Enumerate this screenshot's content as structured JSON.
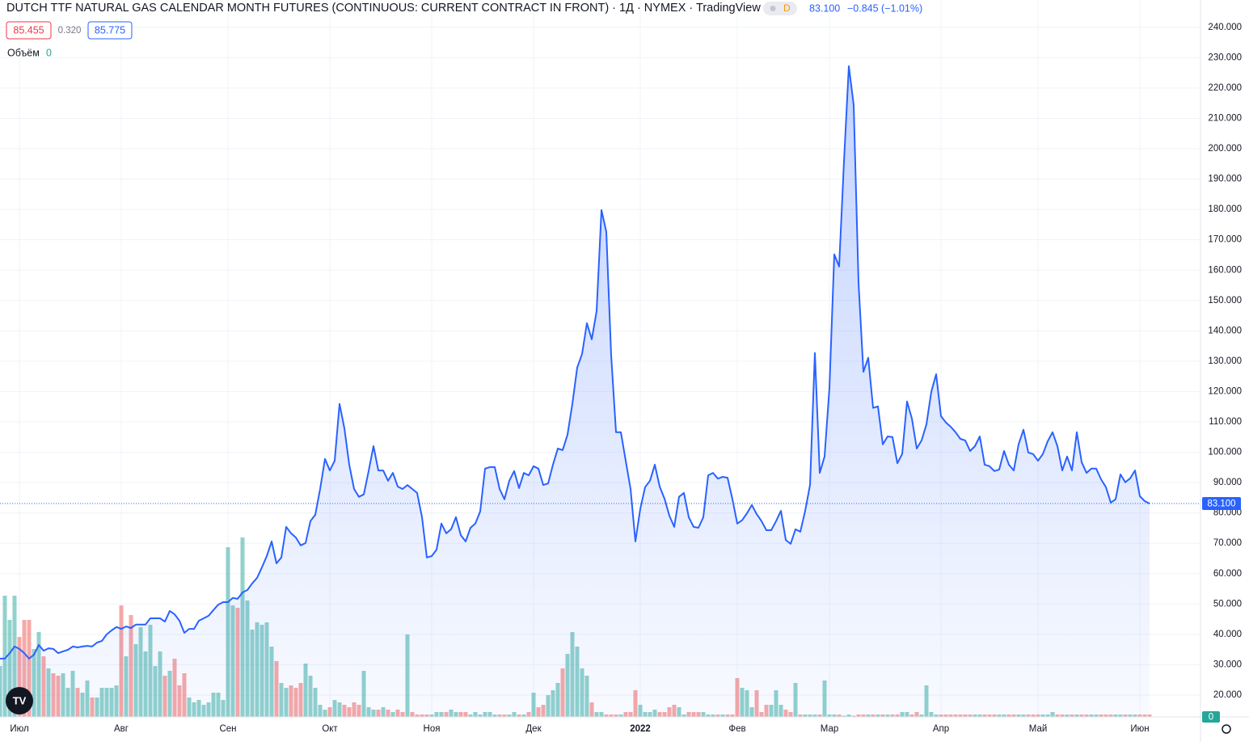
{
  "header": {
    "title": "DUTCH TTF NATURAL GAS CALENDAR MONTH FUTURES (CONTINUOUS: CURRENT CONTRACT IN FRONT) · 1Д · NYMEX · TradingView",
    "badge": "D",
    "last": "83.100",
    "change": "−0.845 (−1.01%)",
    "bid": "85.455",
    "spread": "0.320",
    "ask": "85.775",
    "volume_label": "Объём",
    "volume_value": "0"
  },
  "chart_data": {
    "type": "area",
    "line_color": "#2962ff",
    "up_color": "rgba(38,166,154,0.5)",
    "down_color": "rgba(239,83,80,0.5)",
    "grid": true,
    "xlim": [
      0,
      247.5
    ],
    "xticks": [
      {
        "value": 4,
        "label": "Июл"
      },
      {
        "value": 25,
        "label": "Авг"
      },
      {
        "value": 47,
        "label": "Сен"
      },
      {
        "value": 68,
        "label": "Окт"
      },
      {
        "value": 89,
        "label": "Ноя"
      },
      {
        "value": 110,
        "label": "Дек"
      },
      {
        "value": 132,
        "label": "2022"
      },
      {
        "value": 152,
        "label": "Фев"
      },
      {
        "value": 171,
        "label": "Мар"
      },
      {
        "value": 194,
        "label": "Апр"
      },
      {
        "value": 214,
        "label": "Май"
      },
      {
        "value": 235,
        "label": "Июн"
      }
    ],
    "ylim": [
      12.8,
      249
    ],
    "yticks": [
      {
        "value": 20,
        "label": "20.000"
      },
      {
        "value": 30,
        "label": "30.000"
      },
      {
        "value": 40,
        "label": "40.000"
      },
      {
        "value": 50,
        "label": "50.000"
      },
      {
        "value": 60,
        "label": "60.000"
      },
      {
        "value": 70,
        "label": "70.000"
      },
      {
        "value": 80,
        "label": "80.000"
      },
      {
        "value": 90,
        "label": "90.000"
      },
      {
        "value": 100,
        "label": "100.000"
      },
      {
        "value": 110,
        "label": "110.000"
      },
      {
        "value": 120,
        "label": "120.000"
      },
      {
        "value": 130,
        "label": "130.000"
      },
      {
        "value": 140,
        "label": "140.000"
      },
      {
        "value": 150,
        "label": "150.000"
      },
      {
        "value": 160,
        "label": "160.000"
      },
      {
        "value": 170,
        "label": "170.000"
      },
      {
        "value": 180,
        "label": "180.000"
      },
      {
        "value": 190,
        "label": "190.000"
      },
      {
        "value": 200,
        "label": "200.000"
      },
      {
        "value": 210,
        "label": "210.000"
      },
      {
        "value": 220,
        "label": "220.000"
      },
      {
        "value": 230,
        "label": "230.000"
      },
      {
        "value": 240,
        "label": "240.000"
      }
    ],
    "values": [
      32,
      32,
      33.8,
      36,
      35.2,
      33.8,
      32,
      33.3,
      36.5,
      34.6,
      35.4,
      35.2,
      33.8,
      34.4,
      34.9,
      36,
      35.7,
      36,
      36.2,
      36,
      37.3,
      37.8,
      40,
      41.3,
      42.4,
      41.8,
      42.6,
      42.1,
      43.2,
      43.2,
      43.2,
      45.3,
      45.3,
      45.3,
      44.2,
      47.7,
      46.6,
      44.5,
      40.5,
      41.8,
      41.8,
      44.5,
      45.3,
      46.1,
      48,
      49.8,
      50.6,
      50.6,
      52,
      51.7,
      53.8,
      54.6,
      56.8,
      58.6,
      62.1,
      65.8,
      70.6,
      63.4,
      65.3,
      75.4,
      73.3,
      71.9,
      69.3,
      70.1,
      77.3,
      79.4,
      87.9,
      97.8,
      94,
      97.2,
      115.9,
      107.9,
      95.9,
      87.9,
      85.3,
      86.1,
      93.8,
      102,
      94,
      94,
      90.6,
      93.2,
      88.7,
      87.9,
      89.2,
      87.9,
      86.6,
      78.6,
      65.3,
      65.8,
      67.9,
      76.5,
      73.3,
      74.6,
      78.6,
      72.7,
      70.6,
      75.1,
      76.5,
      80.5,
      94.6,
      95.1,
      95.1,
      87.9,
      84.5,
      90.6,
      93.8,
      88.2,
      93.2,
      92.4,
      95.4,
      94.6,
      89.2,
      89.7,
      95.9,
      101.2,
      100.7,
      105.8,
      115.9,
      127.9,
      132.4,
      142.5,
      137.2,
      146.5,
      179.8,
      172.6,
      131.9,
      106.6,
      106.6,
      97.2,
      87.9,
      70.6,
      81.3,
      88.5,
      90.6,
      95.9,
      88.7,
      84.7,
      79.1,
      75.4,
      85.3,
      86.6,
      78.6,
      75.4,
      75.1,
      78.6,
      92.4,
      93.2,
      91.3,
      91.9,
      91.6,
      84.5,
      76.5,
      77.6,
      79.9,
      82.6,
      79.6,
      77.3,
      74.3,
      74.3,
      77.3,
      80.7,
      71.1,
      69.8,
      74.6,
      73.8,
      80.7,
      89.2,
      132.7,
      93.2,
      98.6,
      121.2,
      165.2,
      161.2,
      195.8,
      227.2,
      214.4,
      155.8,
      126.5,
      131.1,
      114.6,
      115.1,
      102.6,
      105.2,
      105,
      96.4,
      99.4,
      116.7,
      111.1,
      101.2,
      103.9,
      109.2,
      119.9,
      125.7,
      111.9,
      109.8,
      108.4,
      106.6,
      104.4,
      103.9,
      100.4,
      102,
      105.2,
      95.9,
      95.4,
      93.8,
      94.3,
      100.4,
      95.9,
      94,
      102.6,
      107.4,
      99.9,
      99.4,
      97.2,
      99.4,
      103.6,
      106.6,
      102,
      94,
      98.6,
      94,
      106.6,
      96.7,
      93.2,
      94.6,
      94.6,
      91.1,
      88.5,
      83.4,
      84.5,
      92.7,
      90.1,
      91.4,
      94,
      85.5,
      83.9,
      83.1
    ],
    "volume_lim": [
      0,
      100
    ],
    "volume": [
      21,
      50,
      40,
      50,
      33,
      40,
      40,
      28,
      35,
      25,
      20,
      18,
      17,
      18,
      12,
      19,
      12,
      10,
      15,
      8,
      8,
      12,
      12,
      12,
      13,
      46,
      25,
      42,
      30,
      37,
      27,
      38,
      21,
      27,
      17,
      19,
      24,
      13,
      18,
      8,
      6,
      7,
      5,
      6,
      10,
      10,
      7,
      70,
      46,
      45,
      74,
      48,
      36,
      39,
      38,
      39,
      29,
      23,
      14,
      12,
      13,
      12,
      14,
      22,
      17,
      12,
      5,
      3,
      4,
      7,
      6,
      5,
      4,
      6,
      5,
      19,
      4,
      3,
      3,
      4,
      3,
      2,
      3,
      2,
      34,
      2,
      1,
      1,
      1,
      1,
      2,
      2,
      2,
      3,
      2,
      2,
      2,
      1,
      2,
      1,
      2,
      2,
      1,
      1,
      1,
      1,
      2,
      1,
      1,
      2,
      10,
      4,
      5,
      9,
      11,
      14,
      20,
      26,
      35,
      29,
      20,
      17,
      6,
      2,
      2,
      1,
      1,
      1,
      1,
      2,
      2,
      11,
      5,
      2,
      2,
      3,
      2,
      2,
      4,
      5,
      4,
      1,
      2,
      2,
      2,
      2,
      1,
      1,
      1,
      1,
      1,
      1,
      16,
      12,
      11,
      4,
      11,
      2,
      5,
      5,
      11,
      5,
      3,
      2,
      14,
      1,
      1,
      1,
      1,
      1,
      15,
      1,
      1,
      1,
      0.5,
      1,
      0.5,
      1,
      1,
      1,
      1,
      1,
      1,
      1,
      1,
      1,
      2,
      2,
      1,
      2,
      1,
      13,
      2,
      1,
      1,
      1,
      1,
      1,
      1,
      1,
      1,
      1,
      1,
      1,
      1,
      1,
      1,
      1,
      1,
      1,
      1,
      1,
      1,
      1,
      1,
      1,
      1,
      2,
      1,
      1,
      1,
      1,
      1,
      1,
      1,
      1,
      1,
      1,
      1,
      1,
      1,
      1,
      1,
      1,
      1,
      1,
      1,
      1
    ]
  }
}
